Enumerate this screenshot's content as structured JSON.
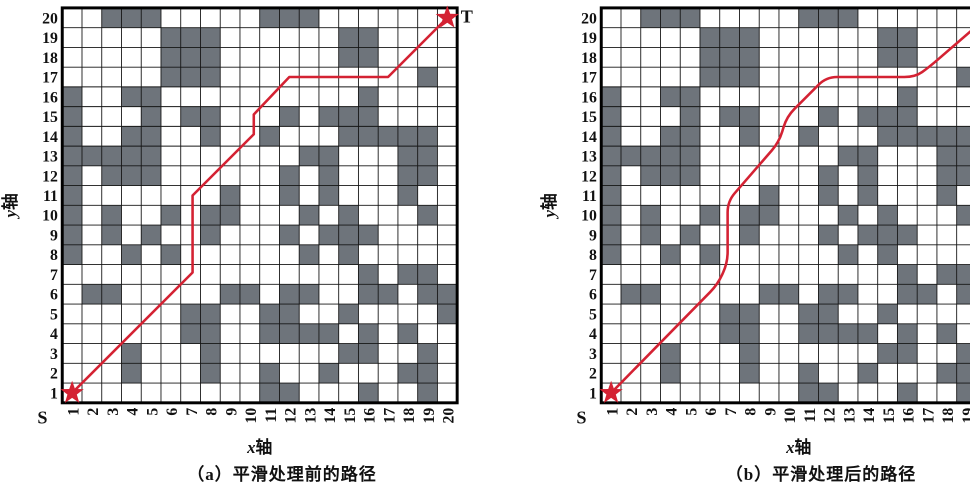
{
  "figure": {
    "panels": [
      {
        "id": "before",
        "caption": "（a）平滑处理前的路径"
      },
      {
        "id": "after",
        "caption": "（b）平滑处理后的路径"
      }
    ]
  },
  "chart_data": {
    "type": "grid-path-map",
    "title": "",
    "grid_size": 20,
    "xlabel_letter": "x",
    "xlabel_suffix": "轴",
    "ylabel_letter": "y",
    "ylabel_suffix": "轴",
    "start_label": "S",
    "target_label": "T",
    "start_cell": [
      1,
      1
    ],
    "target_cell": [
      20,
      20
    ],
    "x_ticks": [
      "1",
      "2",
      "3",
      "4",
      "5",
      "6",
      "7",
      "8",
      "9",
      "10",
      "11",
      "12",
      "13",
      "14",
      "15",
      "16",
      "17",
      "18",
      "19",
      "20"
    ],
    "y_ticks": [
      "20",
      "19",
      "18",
      "17",
      "16",
      "15",
      "14",
      "13",
      "12",
      "11",
      "10",
      "9",
      "8",
      "7",
      "6",
      "5",
      "4",
      "3",
      "2",
      "1"
    ],
    "colors": {
      "obstacle": "#6e747b",
      "path": "#d42233",
      "grid_line": "#161616",
      "border": "#000000",
      "free_cell": "#ffffff",
      "text": "#111111"
    },
    "obstacles_by_row": {
      "20": [
        3,
        4,
        5,
        11,
        12,
        13
      ],
      "19": [
        6,
        7,
        8,
        15,
        16
      ],
      "18": [
        6,
        7,
        8,
        15,
        16
      ],
      "17": [
        6,
        7,
        8,
        19
      ],
      "16": [
        1,
        4,
        5,
        16
      ],
      "15": [
        1,
        5,
        7,
        8,
        12,
        14,
        15,
        16
      ],
      "14": [
        1,
        4,
        5,
        8,
        11,
        15,
        16,
        17,
        18,
        19
      ],
      "13": [
        1,
        2,
        3,
        4,
        5,
        13,
        14,
        18,
        19
      ],
      "12": [
        1,
        3,
        4,
        5,
        12,
        14,
        18,
        19
      ],
      "11": [
        1,
        9,
        12,
        14,
        18
      ],
      "10": [
        1,
        3,
        6,
        8,
        9,
        13,
        15,
        19
      ],
      "9": [
        1,
        3,
        5,
        8,
        12,
        14,
        15,
        16
      ],
      "8": [
        1,
        4,
        6,
        13,
        15
      ],
      "7": [
        16,
        18,
        19
      ],
      "6": [
        2,
        3,
        9,
        10,
        12,
        13,
        16,
        17,
        19,
        20
      ],
      "5": [
        7,
        8,
        11,
        12,
        15,
        20
      ],
      "4": [
        7,
        8,
        11,
        12,
        13,
        14,
        16,
        18
      ],
      "3": [
        4,
        8,
        15,
        16,
        19
      ],
      "2": [
        4,
        8,
        11,
        14,
        18,
        19
      ],
      "1": [
        11,
        12,
        16,
        19
      ]
    },
    "panels": [
      {
        "id": "before",
        "caption": "（a）平滑处理前的路径",
        "corner_radius": 0,
        "path_points": [
          [
            0.5,
            0.5
          ],
          [
            6.6,
            6.6
          ],
          [
            6.6,
            10.5
          ],
          [
            7.1,
            11.0
          ],
          [
            9.7,
            13.6
          ],
          [
            9.7,
            14.6
          ],
          [
            11.5,
            16.5
          ],
          [
            16.5,
            16.5
          ],
          [
            19.5,
            19.5
          ]
        ]
      },
      {
        "id": "after",
        "caption": "（b）平滑处理后的路径",
        "corner_radius": 0.55,
        "path_points": [
          [
            0.5,
            0.5
          ],
          [
            5.9,
            6.0
          ],
          [
            6.4,
            7.1
          ],
          [
            6.4,
            10.2
          ],
          [
            9.0,
            13.2
          ],
          [
            9.4,
            14.5
          ],
          [
            11.4,
            16.5
          ],
          [
            15.9,
            16.5
          ],
          [
            16.6,
            17.0
          ],
          [
            19.5,
            19.5
          ]
        ]
      }
    ]
  }
}
